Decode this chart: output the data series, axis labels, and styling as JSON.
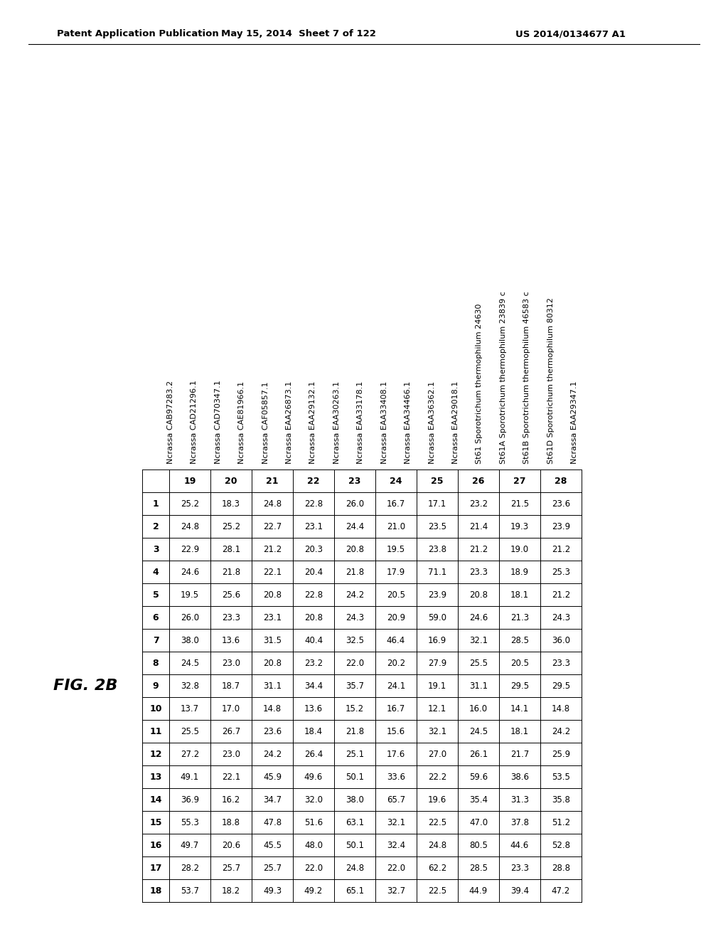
{
  "header_left": "Patent Application Publication",
  "header_mid": "May 15, 2014  Sheet 7 of 122",
  "header_right": "US 2014/0134677 A1",
  "fig_label": "FIG. 2B",
  "row_labels": [
    "1",
    "2",
    "3",
    "4",
    "5",
    "6",
    "7",
    "8",
    "9",
    "10",
    "11",
    "12",
    "13",
    "14",
    "15",
    "16",
    "17",
    "18"
  ],
  "col_headers": [
    "19",
    "20",
    "21",
    "22",
    "23",
    "24",
    "25",
    "26",
    "27",
    "28"
  ],
  "row_names": [
    "Ncrassa CAB97283.2",
    "Ncrassa CAD21296.1",
    "Ncrassa CAD70347.1",
    "Ncrassa CAE81966.1",
    "Ncrassa CAF05857.1",
    "Ncrassa EAA26873.1",
    "Ncrassa EAA29132.1",
    "Ncrassa EAA30263.1",
    "Ncrassa EAA33178.1",
    "Ncrassa EAA33408.1",
    "Ncrassa EAA34466.1",
    "Ncrassa EAA36362.1",
    "Ncrassa EAA29018.1",
    "St61 Sporotrichum thermophilum 24630",
    "St61A Sporotrichum thermophilum 23839 c",
    "St61B Sporotrichum thermophilum 46583 c",
    "St61D Sporotrichum thermophilum 80312",
    "Ncrassa EAA29347.1"
  ],
  "table_data": [
    [
      25.2,
      18.3,
      24.8,
      22.8,
      26.0,
      16.7,
      17.1,
      23.2,
      21.5,
      23.6
    ],
    [
      24.8,
      25.2,
      22.7,
      23.1,
      24.4,
      21.0,
      23.5,
      21.4,
      19.3,
      23.9
    ],
    [
      22.9,
      28.1,
      21.2,
      20.3,
      20.8,
      19.5,
      23.8,
      21.2,
      19.0,
      21.2
    ],
    [
      24.6,
      21.8,
      22.1,
      20.4,
      21.8,
      17.9,
      71.1,
      23.3,
      18.9,
      25.3
    ],
    [
      19.5,
      25.6,
      20.8,
      22.8,
      24.2,
      20.5,
      23.9,
      20.8,
      18.1,
      21.2
    ],
    [
      26.0,
      23.3,
      23.1,
      20.8,
      24.3,
      20.9,
      59.0,
      24.6,
      21.3,
      24.3
    ],
    [
      38.0,
      13.6,
      31.5,
      40.4,
      32.5,
      46.4,
      16.9,
      32.1,
      28.5,
      36.0
    ],
    [
      24.5,
      23.0,
      20.8,
      23.2,
      22.0,
      20.2,
      27.9,
      25.5,
      20.5,
      23.3
    ],
    [
      32.8,
      18.7,
      31.1,
      34.4,
      35.7,
      24.1,
      19.1,
      31.1,
      29.5,
      29.5
    ],
    [
      13.7,
      17.0,
      14.8,
      13.6,
      15.2,
      16.7,
      12.1,
      16.0,
      14.1,
      14.8
    ],
    [
      25.5,
      26.7,
      23.6,
      18.4,
      21.8,
      15.6,
      32.1,
      24.5,
      18.1,
      24.2
    ],
    [
      27.2,
      23.0,
      24.2,
      26.4,
      25.1,
      17.6,
      27.0,
      26.1,
      21.7,
      25.9
    ],
    [
      49.1,
      22.1,
      45.9,
      49.6,
      50.1,
      33.6,
      22.2,
      59.6,
      38.6,
      53.5
    ],
    [
      36.9,
      16.2,
      34.7,
      32.0,
      38.0,
      65.7,
      19.6,
      35.4,
      31.3,
      35.8
    ],
    [
      55.3,
      18.8,
      47.8,
      51.6,
      63.1,
      32.1,
      22.5,
      47.0,
      37.8,
      51.2
    ],
    [
      49.7,
      20.6,
      45.5,
      48.0,
      50.1,
      32.4,
      24.8,
      80.5,
      44.6,
      52.8
    ],
    [
      28.2,
      25.7,
      25.7,
      22.0,
      24.8,
      22.0,
      62.2,
      28.5,
      23.3,
      28.8
    ],
    [
      53.7,
      18.2,
      49.3,
      49.2,
      65.1,
      32.7,
      22.5,
      44.9,
      39.4,
      47.2
    ]
  ],
  "bg_color": "#ffffff",
  "text_color": "#000000",
  "line_color": "#000000",
  "header_fontsize": 9.5,
  "figlabel_fontsize": 16,
  "col_header_fontsize": 9,
  "row_label_fontsize": 9,
  "data_fontsize": 8.5,
  "rowname_fontsize": 8
}
